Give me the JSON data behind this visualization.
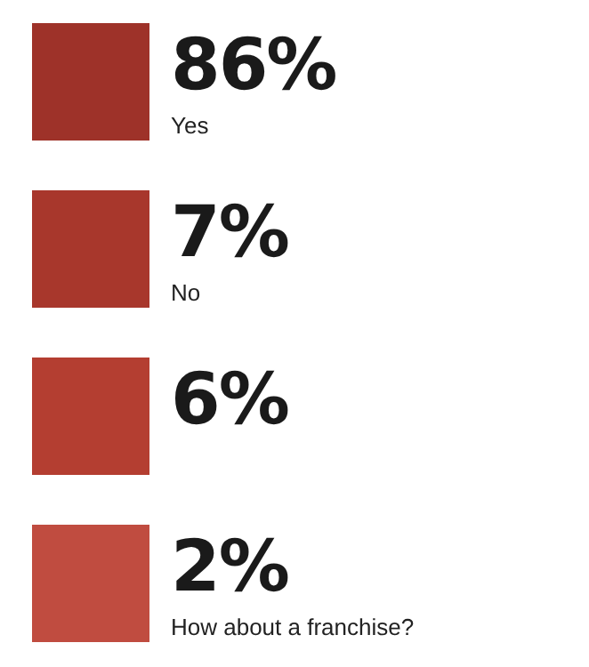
{
  "chart_data": {
    "type": "other",
    "categories": [
      "Yes",
      "No",
      null,
      "How about a franchise?"
    ],
    "values": [
      86,
      7,
      6,
      2
    ],
    "value_labels": [
      "86%",
      "7%",
      "6%",
      "2%"
    ],
    "colors": [
      "#9e3229",
      "#a8372c",
      "#b43e31",
      "#c04c40"
    ]
  }
}
